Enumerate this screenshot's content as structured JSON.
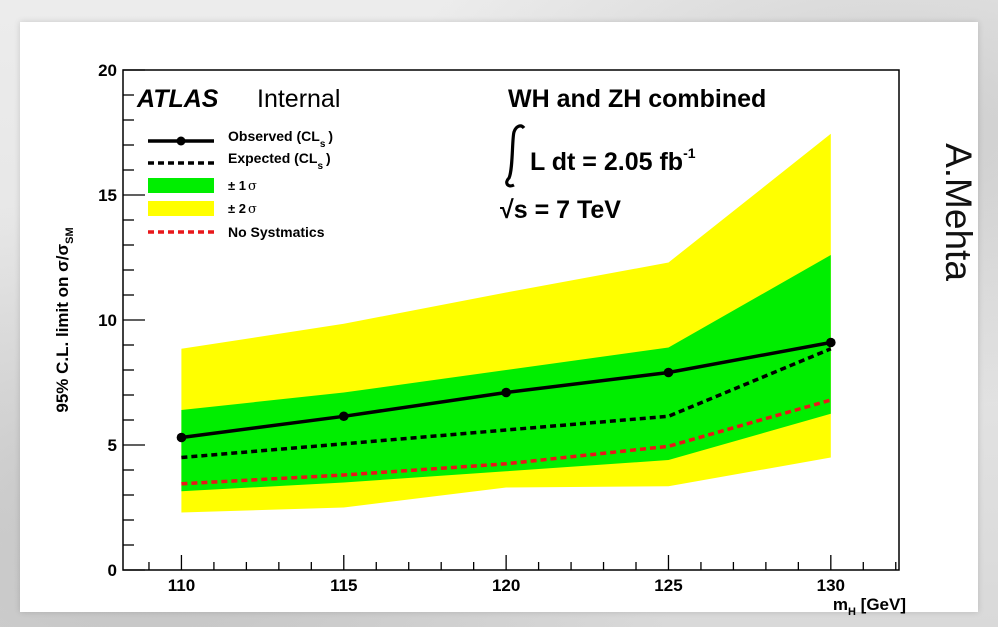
{
  "author": "A.Mehta",
  "chart_data": {
    "type": "line",
    "xlabel_main": "m",
    "xlabel_sub": "H",
    "xlabel_unit": "[GeV]",
    "ylabel_main": "95% C.L. limit on σ/σ",
    "ylabel_sub": "SM",
    "xlim": [
      108.2,
      132.1
    ],
    "ylim": [
      0,
      20
    ],
    "x_ticks": [
      110,
      115,
      120,
      125,
      130
    ],
    "y_ticks": [
      0,
      5,
      10,
      15,
      20
    ],
    "x": [
      110,
      115,
      120,
      125,
      130
    ],
    "observed": [
      5.3,
      6.15,
      7.1,
      7.9,
      9.1
    ],
    "expected": [
      4.5,
      5.05,
      5.6,
      6.15,
      8.85
    ],
    "no_systematics": [
      3.45,
      3.8,
      4.25,
      4.95,
      6.8
    ],
    "band_1sigma": {
      "low": [
        3.15,
        3.5,
        3.95,
        4.4,
        6.25
      ],
      "high": [
        6.4,
        7.1,
        8.0,
        8.9,
        12.6
      ]
    },
    "band_2sigma": {
      "low": [
        2.3,
        2.5,
        3.3,
        3.35,
        4.5
      ],
      "high": [
        8.85,
        9.85,
        11.1,
        12.3,
        17.45
      ]
    },
    "colors": {
      "band_1sigma": "#00ee00",
      "band_2sigma": "#ffff00",
      "observed": "#000000",
      "expected": "#000000",
      "no_systematics": "#e8171a"
    },
    "legend": {
      "observed": "Observed (CL",
      "observed_sub": "s",
      "expected": "Expected (CL",
      "expected_sub": "s",
      "close_paren": ")",
      "one_sigma_prefix": "± 1",
      "one_sigma_symbol": "σ",
      "two_sigma_prefix": "± 2",
      "two_sigma_symbol": "σ",
      "no_syst": "No Systmatics"
    },
    "atlas": "ATLAS",
    "internal": "Internal",
    "title": "WH and ZH combined",
    "lumi": "L dt = 2.05 fb",
    "lumi_sup": "-1",
    "sqrt_symbol": "√",
    "energy": "s = 7 TeV",
    "grid": false,
    "legend_position": "top-left"
  }
}
